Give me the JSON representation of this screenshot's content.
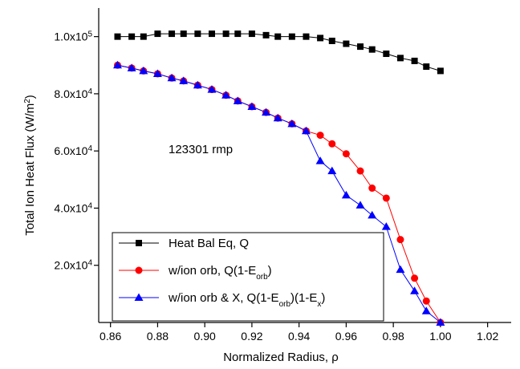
{
  "chart_data": {
    "type": "line",
    "xlabel": [
      {
        "text": "Normalized Radius, ρ"
      }
    ],
    "ylabel": [
      {
        "text": "Total Ion Heat Flux (W/m"
      },
      {
        "text": "2",
        "sup": true
      },
      {
        "text": ")"
      }
    ],
    "annotation": "123301 rmp",
    "xlim": [
      0.855,
      1.03
    ],
    "ylim": [
      0,
      110000
    ],
    "xticks": [
      {
        "value": 0.86,
        "label": "0.86"
      },
      {
        "value": 0.88,
        "label": "0.88"
      },
      {
        "value": 0.9,
        "label": "0.90"
      },
      {
        "value": 0.92,
        "label": "0.92"
      },
      {
        "value": 0.94,
        "label": "0.94"
      },
      {
        "value": 0.96,
        "label": "0.96"
      },
      {
        "value": 0.98,
        "label": "0.98"
      },
      {
        "value": 1.0,
        "label": "1.00"
      },
      {
        "value": 1.02,
        "label": "1.02"
      }
    ],
    "yticks": [
      {
        "value": 20000,
        "label": "2.0x10",
        "exponent": "4"
      },
      {
        "value": 40000,
        "label": "4.0x10",
        "exponent": "4"
      },
      {
        "value": 60000,
        "label": "6.0x10",
        "exponent": "4"
      },
      {
        "value": 80000,
        "label": "8.0x10",
        "exponent": "4"
      },
      {
        "value": 100000,
        "label": "1.0x10",
        "exponent": "5"
      }
    ],
    "legend": "lower left",
    "x": [
      0.863,
      0.869,
      0.874,
      0.88,
      0.886,
      0.891,
      0.897,
      0.903,
      0.909,
      0.914,
      0.92,
      0.926,
      0.931,
      0.937,
      0.943,
      0.949,
      0.954,
      0.96,
      0.966,
      0.971,
      0.977,
      0.983,
      0.989,
      0.994,
      1.0
    ],
    "series": [
      {
        "name": [
          {
            "text": "Heat Bal Eq, Q"
          }
        ],
        "color": "#000000",
        "marker": "square",
        "values": [
          100000,
          100000,
          100000,
          101000,
          101000,
          101000,
          101000,
          101000,
          101000,
          101000,
          101000,
          100500,
          100000,
          100000,
          100000,
          99500,
          98500,
          97500,
          96500,
          95500,
          94000,
          92500,
          91500,
          89500,
          88000
        ]
      },
      {
        "name": [
          {
            "text": "w/ion orb, Q(1-E"
          },
          {
            "text": "orb",
            "sub": true
          },
          {
            "text": ")"
          }
        ],
        "color": "#ff0000",
        "marker": "circle",
        "values": [
          90000,
          89000,
          88000,
          87000,
          85500,
          84500,
          83000,
          81500,
          79500,
          77500,
          75500,
          73500,
          71500,
          69500,
          67000,
          65500,
          62500,
          59000,
          53000,
          47000,
          43500,
          29000,
          15500,
          7500,
          0
        ]
      },
      {
        "name": [
          {
            "text": "w/ion orb & X, Q(1-E"
          },
          {
            "text": "orb",
            "sub": true
          },
          {
            "text": ")(1-E"
          },
          {
            "text": "x",
            "sub": true
          },
          {
            "text": ")"
          }
        ],
        "color": "#0000ff",
        "marker": "triangle",
        "values": [
          90000,
          89000,
          88000,
          87000,
          85500,
          84500,
          83000,
          81500,
          79500,
          77500,
          75500,
          73500,
          71500,
          69500,
          67000,
          56500,
          53000,
          44500,
          41000,
          37500,
          33500,
          18500,
          11000,
          4000,
          0
        ]
      }
    ]
  }
}
